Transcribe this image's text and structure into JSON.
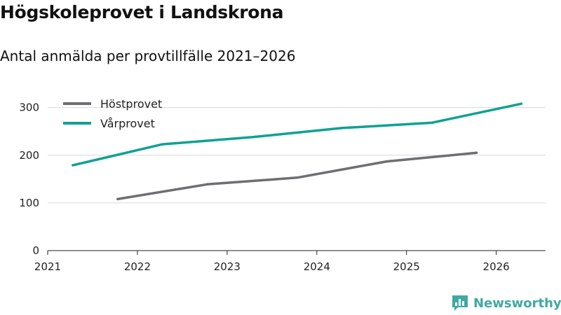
{
  "title": "Högskoleprovet i Landskrona",
  "subtitle": "Antal anmälda per provtillfälle 2021–2026",
  "logo_text": "Newsworthy",
  "chart_data": {
    "type": "line",
    "title": "Högskoleprovet i Landskrona",
    "subtitle": "Antal anmälda per provtillfälle 2021–2026",
    "xlabel": "",
    "ylabel": "",
    "xlim": [
      2021,
      2026.55
    ],
    "ylim": [
      0,
      320
    ],
    "x_ticks": [
      2021,
      2022,
      2023,
      2024,
      2025,
      2026
    ],
    "y_ticks": [
      0,
      100,
      200,
      300
    ],
    "grid": true,
    "legend_position": "top-left",
    "series": [
      {
        "name": "Höstprovet",
        "color": "#6e6e73",
        "points": [
          {
            "x": 2021.78,
            "y": 108
          },
          {
            "x": 2022.78,
            "y": 139
          },
          {
            "x": 2023.78,
            "y": 153
          },
          {
            "x": 2024.78,
            "y": 187
          },
          {
            "x": 2025.78,
            "y": 205
          }
        ]
      },
      {
        "name": "Vårprovet",
        "color": "#0ea293",
        "points": [
          {
            "x": 2021.28,
            "y": 179
          },
          {
            "x": 2022.28,
            "y": 223
          },
          {
            "x": 2023.28,
            "y": 238
          },
          {
            "x": 2024.28,
            "y": 257
          },
          {
            "x": 2025.28,
            "y": 268
          },
          {
            "x": 2026.28,
            "y": 308
          }
        ]
      }
    ]
  }
}
